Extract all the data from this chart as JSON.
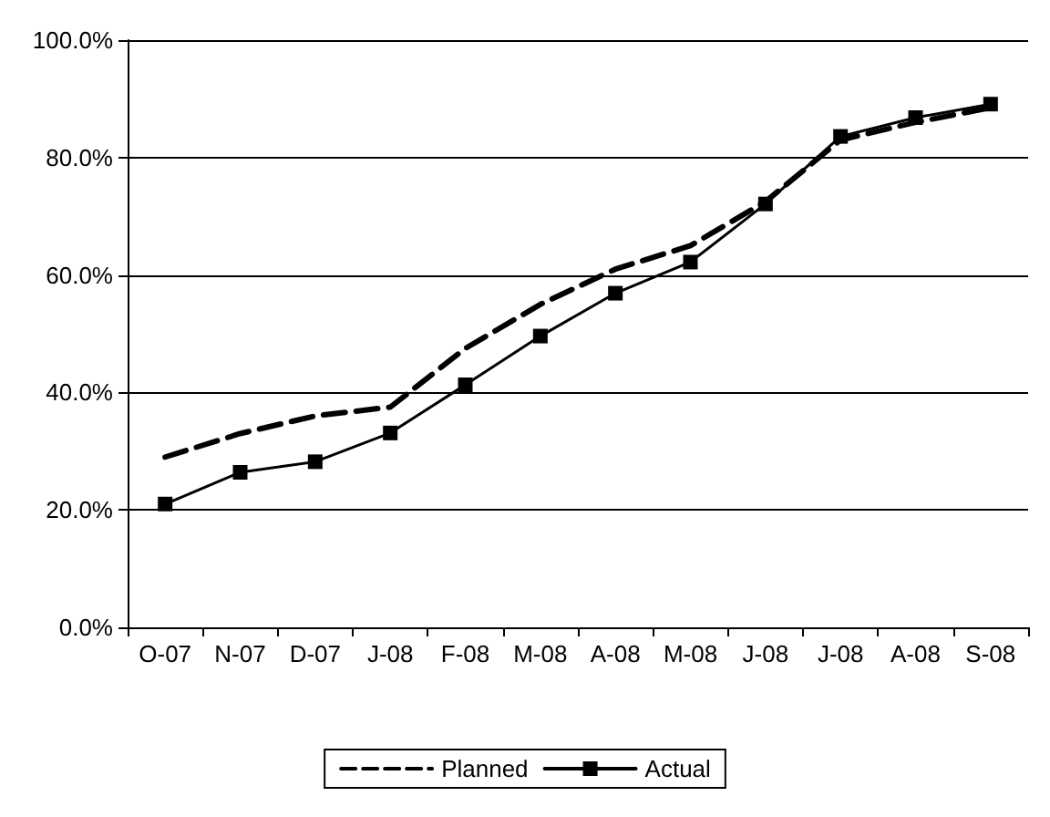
{
  "chart_data": {
    "type": "line",
    "categories": [
      "O-07",
      "N-07",
      "D-07",
      "J-08",
      "F-08",
      "M-08",
      "A-08",
      "M-08",
      "J-08",
      "J-08",
      "A-08",
      "S-08"
    ],
    "series": [
      {
        "name": "Planned",
        "color": "#000000",
        "line_style": "dashed",
        "marker": "none",
        "values": [
          29,
          33,
          36,
          37.5,
          47.5,
          55,
          61,
          65,
          72.5,
          83,
          86,
          88.5
        ]
      },
      {
        "name": "Actual",
        "color": "#000000",
        "line_style": "solid",
        "marker": "square",
        "values": [
          21,
          26.4,
          28.2,
          33.1,
          41.3,
          49.6,
          56.9,
          62.2,
          72.1,
          83.6,
          86.8,
          89.1
        ]
      }
    ],
    "ylim": [
      0,
      100
    ],
    "yticks": [
      {
        "value": 0,
        "label": "0.0%"
      },
      {
        "value": 20,
        "label": "20.0%"
      },
      {
        "value": 40,
        "label": "40.0%"
      },
      {
        "value": 60,
        "label": "60.0%"
      },
      {
        "value": 80,
        "label": "80.0%"
      },
      {
        "value": 100,
        "label": "100.0%"
      }
    ],
    "grid": "y",
    "legend": "bottom"
  }
}
